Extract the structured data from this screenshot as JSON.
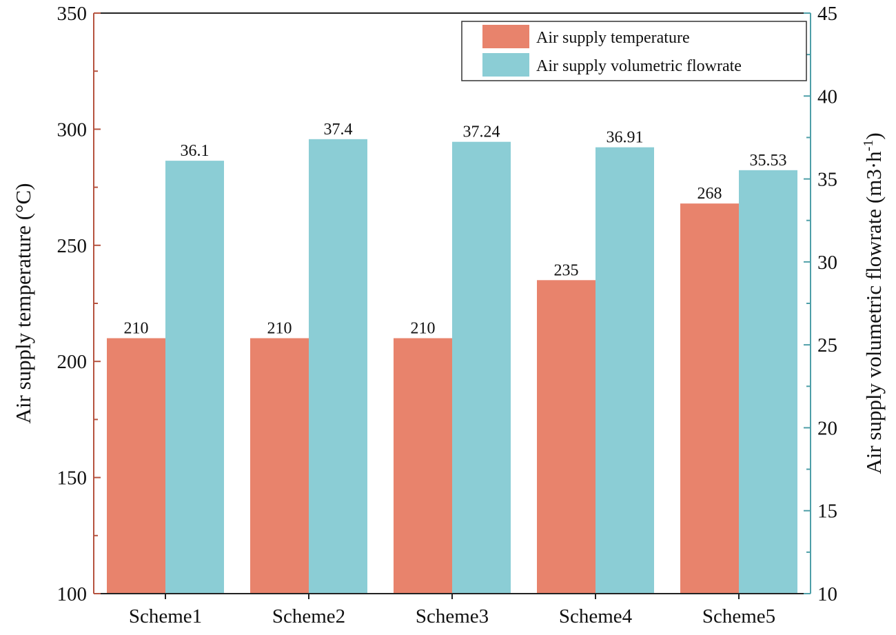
{
  "chart_data": {
    "type": "bar",
    "categories": [
      "Scheme1",
      "Scheme2",
      "Scheme3",
      "Scheme4",
      "Scheme5"
    ],
    "series": [
      {
        "name": "Air supply temperature",
        "axis": "left",
        "color": "#E8836C",
        "values": [
          210,
          210,
          210,
          235,
          268
        ],
        "labels": [
          "210",
          "210",
          "210",
          "235",
          "268"
        ]
      },
      {
        "name": "Air supply volumetric flowrate",
        "axis": "right",
        "color": "#8BCDD5",
        "values": [
          36.1,
          37.4,
          37.24,
          36.91,
          35.53
        ],
        "labels": [
          "36.1",
          "37.4",
          "37.24",
          "36.91",
          "35.53"
        ]
      }
    ],
    "ylabel_left": "Air supply temperature (°C)",
    "ylabel_right": "Air supply volumetric flowrate (m3·h",
    "ylabel_right_sup": "-1",
    "ylabel_right_close": ")",
    "ylim_left": [
      100,
      350
    ],
    "yticks_left": [
      "100",
      "150",
      "200",
      "250",
      "300",
      "350"
    ],
    "ylim_right": [
      10,
      45
    ],
    "yticks_right": [
      "10",
      "15",
      "20",
      "25",
      "30",
      "35",
      "40",
      "45"
    ],
    "left_axis_color": "#B5533F",
    "right_axis_color": "#4E9FA8",
    "legend": {
      "position": "top-right",
      "entries": [
        "Air supply temperature",
        "Air supply volumetric flowrate"
      ]
    }
  }
}
